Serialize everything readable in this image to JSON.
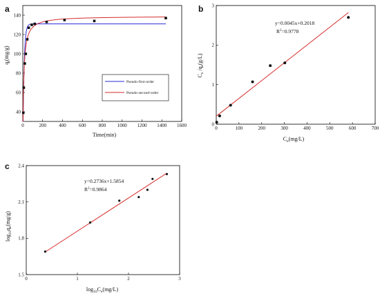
{
  "chart_data": [
    {
      "panel": "a",
      "type": "scatter",
      "xlabel": "Time(min)",
      "ylabel": "q_t(mg/g)",
      "xlim": [
        0,
        1600
      ],
      "ylim": [
        30,
        150
      ],
      "xticks": [
        0,
        200,
        400,
        600,
        800,
        1000,
        1200,
        1400,
        1600
      ],
      "yticks": [
        40,
        60,
        80,
        100,
        120,
        140
      ],
      "points": {
        "x": [
          5,
          10,
          20,
          30,
          45,
          60,
          90,
          120,
          240,
          420,
          720,
          1440
        ],
        "y": [
          39,
          65,
          90,
          100,
          115,
          127,
          130,
          131,
          133,
          135,
          134,
          137
        ]
      },
      "models": [
        {
          "name": "Pseudo-first-order",
          "color": "#2a2ad6",
          "qe": 131,
          "k1": 0.08
        },
        {
          "name": "Pseudo-second-order",
          "color": "#d62a2a",
          "qe": 139,
          "k2": 0.0008
        }
      ],
      "legend_placement": "center-right"
    },
    {
      "panel": "b",
      "type": "scatter",
      "xlabel": "C_e(mg/L)",
      "ylabel": "C_e /q_e(g/L)",
      "xlim": [
        0,
        700
      ],
      "ylim": [
        0,
        3
      ],
      "xticks": [
        0,
        100,
        200,
        300,
        400,
        500,
        600,
        700
      ],
      "yticks": [
        0,
        1,
        2,
        3
      ],
      "points": {
        "x": [
          2,
          15,
          63,
          160,
          238,
          302,
          582
        ],
        "y": [
          0.05,
          0.21,
          0.48,
          1.07,
          1.48,
          1.55,
          2.7
        ]
      },
      "fit": {
        "slope": 0.0045,
        "intercept": 0.2018,
        "x_range": [
          0,
          582
        ],
        "color": "#d62a2a"
      },
      "equation": "y=0.0045x+0.2018",
      "r2_label": "R",
      "r2_sup": "2",
      "r2_value": "=0.9778"
    },
    {
      "panel": "c",
      "type": "scatter",
      "xlabel": "log10Ce(mg/L)",
      "ylabel": "log10qe(mg/g)",
      "xlim": [
        0,
        3
      ],
      "ylim": [
        1.5,
        2.4
      ],
      "xticks": [
        0,
        1,
        2,
        3
      ],
      "yticks": [
        1.5,
        1.8,
        2.1,
        2.4
      ],
      "points": {
        "x": [
          0.37,
          1.25,
          1.82,
          2.2,
          2.37,
          2.47,
          2.75
        ],
        "y": [
          1.69,
          1.93,
          2.11,
          2.14,
          2.2,
          2.29,
          2.33
        ]
      },
      "fit": {
        "slope": 0.2736,
        "intercept": 1.5854,
        "x_range": [
          0.37,
          2.75
        ],
        "color": "#d62a2a"
      },
      "equation": "y=0.2736x+1.5854",
      "r2_label": "R",
      "r2_sup": "2",
      "r2_value": "=0.9864"
    }
  ],
  "labels": {
    "a_letter": "a",
    "b_letter": "b",
    "c_letter": "c",
    "a_xlabel": "Time(min)",
    "a_ylabel_main": "q",
    "a_ylabel_sub": "t",
    "a_ylabel_rest": "(mg/g)",
    "b_xlabel_main": "C",
    "b_xlabel_sub": "e",
    "b_xlabel_rest": "(mg/L)",
    "b_ylabel_c1": "C",
    "b_ylabel_s1": "e",
    "b_ylabel_mid": " /q",
    "b_ylabel_s2": "e",
    "b_ylabel_rest": "(g/L)",
    "c_xlabel_log": "log",
    "c_xlabel_s1": "10",
    "c_xlabel_c": "C",
    "c_xlabel_s2": "e",
    "c_xlabel_rest": "(mg/L)",
    "c_ylabel_log": "log",
    "c_ylabel_s1": "10",
    "c_ylabel_q": "q",
    "c_ylabel_s2": "e",
    "c_ylabel_rest": "(mg/g)"
  }
}
